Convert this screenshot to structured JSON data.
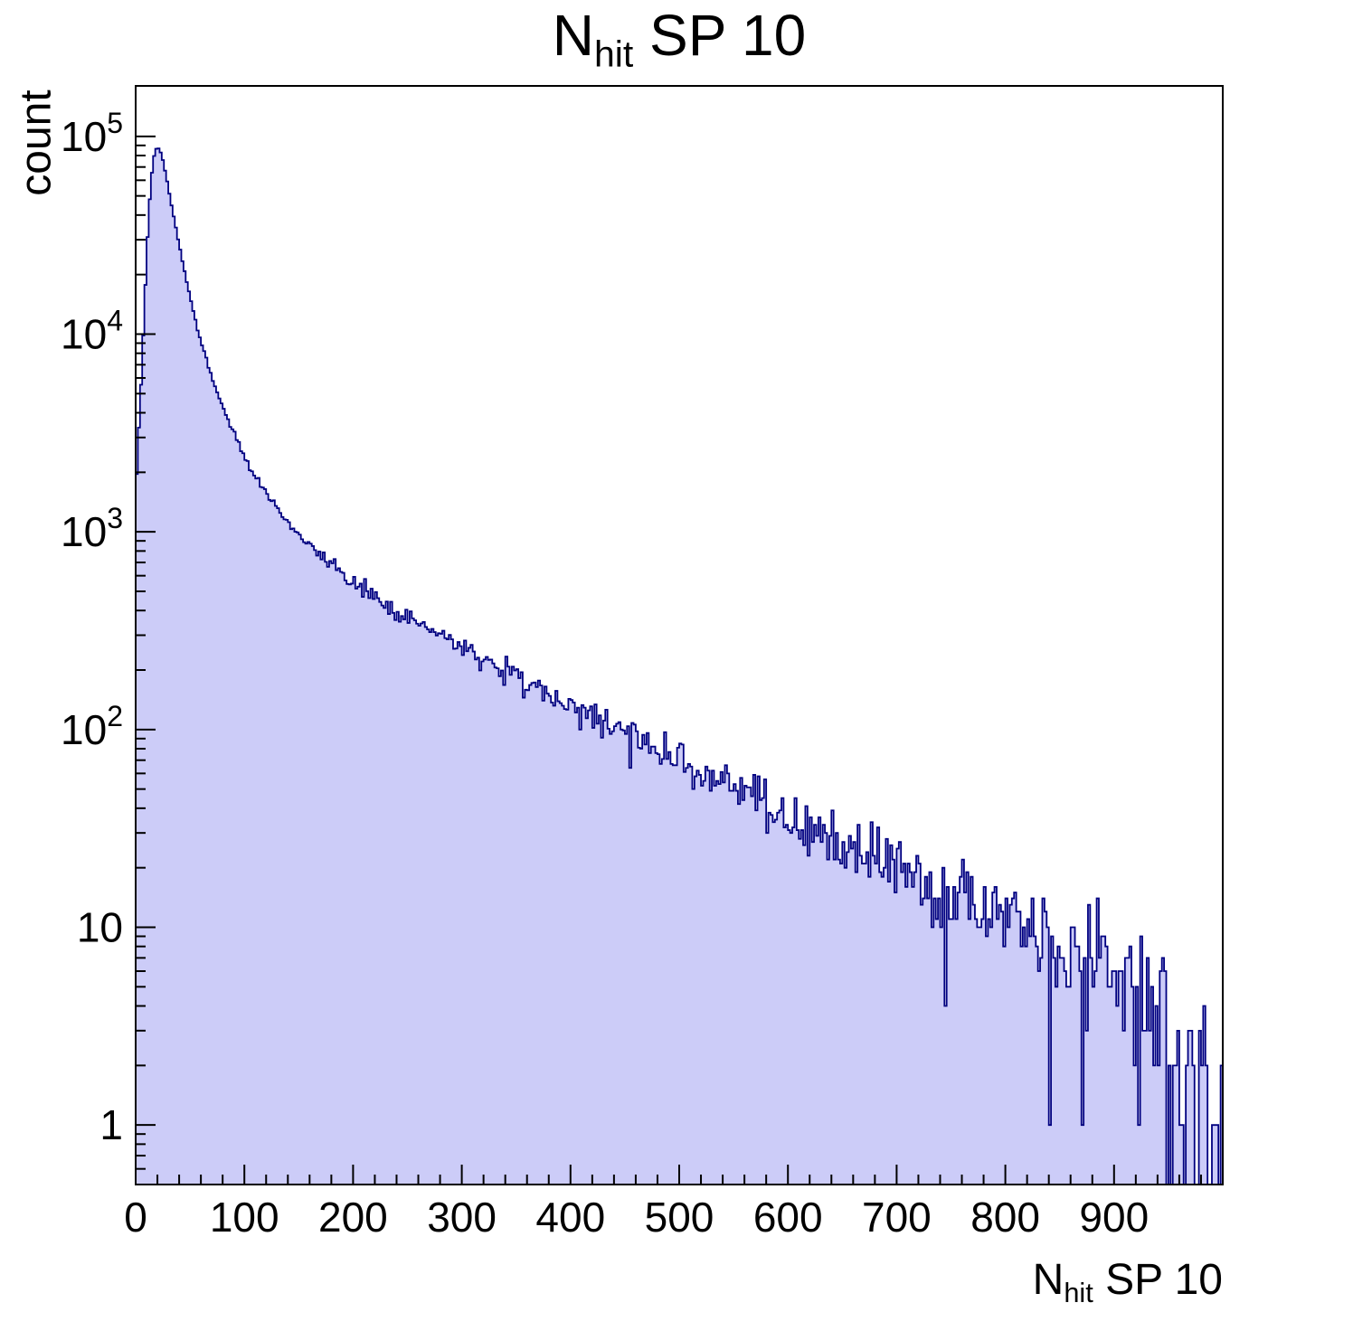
{
  "page": {
    "background": "#ffffff"
  },
  "chart_data": {
    "type": "histogram",
    "title": "N_hit SP 10",
    "title_parts": {
      "main": "N",
      "sub": "hit",
      "rest": " SP 10"
    },
    "ylabel": "count",
    "xlabel": "N_hit SP 10",
    "xlabel_parts": {
      "main": "N",
      "sub": "hit",
      "rest": " SP 10"
    },
    "xscale": "linear",
    "yscale": "log",
    "xlim": [
      0,
      1000
    ],
    "ylim": [
      0.5,
      180000
    ],
    "x_major_ticks": [
      0,
      100,
      200,
      300,
      400,
      500,
      600,
      700,
      800,
      900
    ],
    "x_minor_step": 20,
    "y_major_ticks": [
      1,
      10,
      100,
      1000,
      10000,
      100000
    ],
    "grid": false,
    "legend": false,
    "bin_width": 2,
    "peak": {
      "x": 20,
      "count": 88000
    },
    "envelope": [
      [
        0,
        1500
      ],
      [
        2,
        2600
      ],
      [
        4,
        4200
      ],
      [
        6,
        7500
      ],
      [
        8,
        13000
      ],
      [
        10,
        24000
      ],
      [
        12,
        40000
      ],
      [
        14,
        58000
      ],
      [
        16,
        74000
      ],
      [
        18,
        85000
      ],
      [
        20,
        88000
      ],
      [
        22,
        86000
      ],
      [
        24,
        80000
      ],
      [
        26,
        72000
      ],
      [
        28,
        63000
      ],
      [
        30,
        55000
      ],
      [
        34,
        42000
      ],
      [
        38,
        32000
      ],
      [
        42,
        25000
      ],
      [
        46,
        19500
      ],
      [
        50,
        15500
      ],
      [
        55,
        11800
      ],
      [
        60,
        9200
      ],
      [
        65,
        7400
      ],
      [
        70,
        6100
      ],
      [
        75,
        5100
      ],
      [
        80,
        4300
      ],
      [
        85,
        3700
      ],
      [
        90,
        3200
      ],
      [
        95,
        2750
      ],
      [
        100,
        2400
      ],
      [
        110,
        1900
      ],
      [
        120,
        1560
      ],
      [
        130,
        1300
      ],
      [
        140,
        1110
      ],
      [
        150,
        960
      ],
      [
        160,
        850
      ],
      [
        170,
        760
      ],
      [
        180,
        685
      ],
      [
        190,
        620
      ],
      [
        200,
        565
      ],
      [
        210,
        515
      ],
      [
        220,
        470
      ],
      [
        230,
        432
      ],
      [
        240,
        398
      ],
      [
        250,
        368
      ],
      [
        260,
        340
      ],
      [
        270,
        316
      ],
      [
        280,
        294
      ],
      [
        300,
        258
      ],
      [
        320,
        226
      ],
      [
        340,
        199
      ],
      [
        360,
        175
      ],
      [
        380,
        152
      ],
      [
        400,
        133
      ],
      [
        420,
        117
      ],
      [
        440,
        104
      ],
      [
        460,
        92
      ],
      [
        480,
        80
      ],
      [
        500,
        70
      ],
      [
        520,
        61
      ],
      [
        540,
        54
      ],
      [
        560,
        47
      ],
      [
        580,
        41
      ],
      [
        600,
        36
      ],
      [
        620,
        32
      ],
      [
        640,
        28
      ],
      [
        660,
        25
      ],
      [
        680,
        22
      ],
      [
        700,
        20
      ],
      [
        720,
        18
      ],
      [
        740,
        16
      ],
      [
        760,
        14
      ],
      [
        780,
        12.5
      ],
      [
        800,
        11
      ],
      [
        820,
        10
      ],
      [
        840,
        9
      ],
      [
        860,
        8
      ],
      [
        880,
        7
      ],
      [
        900,
        6
      ],
      [
        920,
        4.6
      ],
      [
        940,
        3.4
      ],
      [
        960,
        2.4
      ],
      [
        980,
        1.6
      ],
      [
        1000,
        1.1
      ]
    ],
    "noise": {
      "model": "poisson",
      "seed": 20240517
    },
    "style": {
      "fill_color": "#ccccf8",
      "line_color": "#000080",
      "axis_color": "#000000",
      "text_color": "#000000"
    }
  }
}
